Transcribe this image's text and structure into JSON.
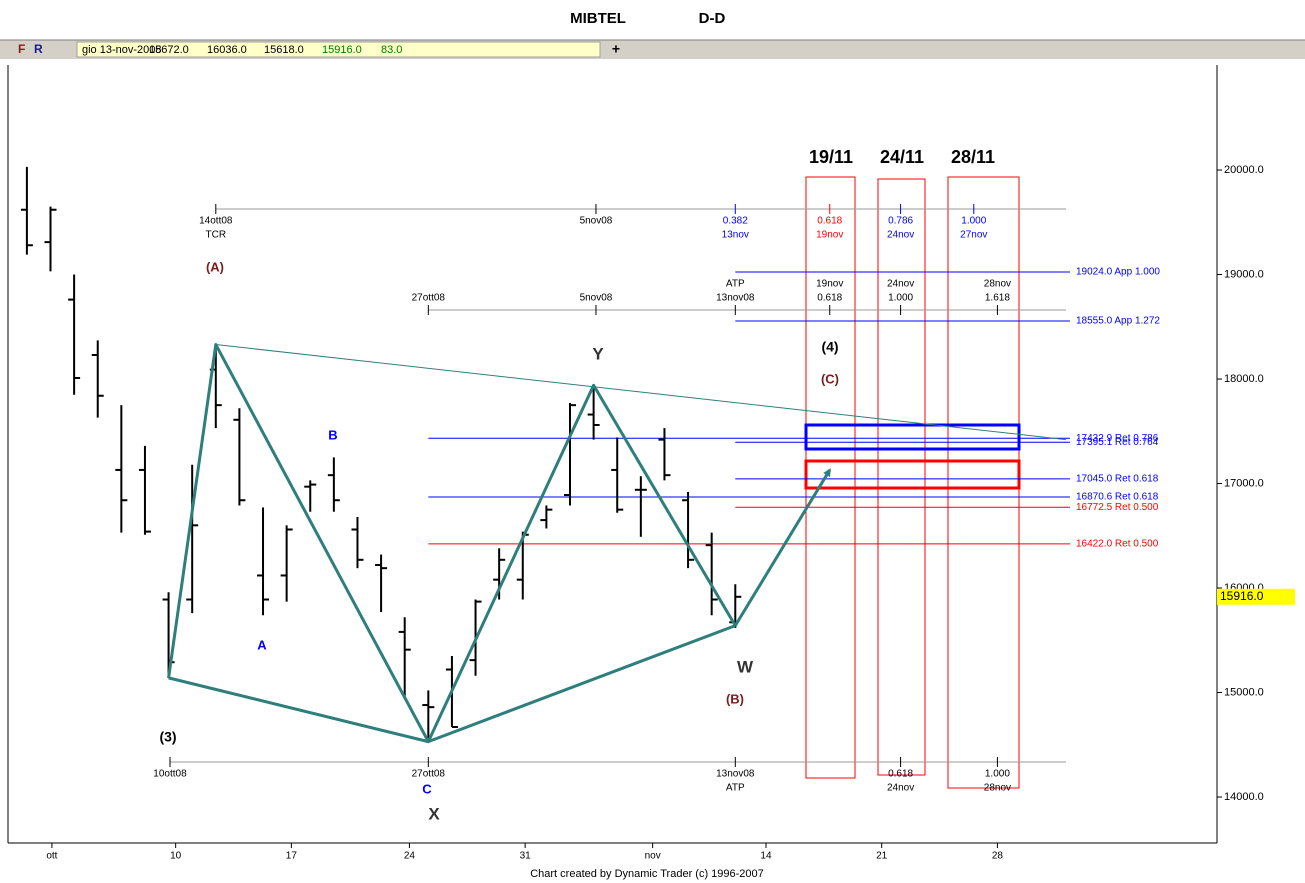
{
  "header": {
    "title": "MIBTEL",
    "period": "D-D"
  },
  "toolbar": {
    "buttons": [
      "F",
      "R"
    ],
    "date": "gio 13-nov-2008",
    "quote": [
      "15672.0",
      "16036.0",
      "15618.0",
      "15916.0",
      "83.0"
    ],
    "cursor": "+"
  },
  "footer": "Chart created by Dynamic Trader  (c) 1996-2007",
  "chart_data": {
    "type": "ohlc",
    "color": "#000000",
    "x": [
      0,
      1,
      2,
      3,
      4,
      5,
      6,
      7,
      8,
      9,
      10,
      11,
      12,
      13,
      14,
      15,
      16,
      17,
      18,
      19,
      20,
      21,
      22,
      23,
      24,
      25,
      26,
      27,
      28,
      29,
      30
    ],
    "open": [
      19620,
      19310,
      18760,
      18230,
      17130,
      17130,
      15890,
      15890,
      18090,
      17610,
      16120,
      16120,
      16970,
      17080,
      16560,
      16220,
      15580,
      14880,
      15220,
      15310,
      16080,
      16080,
      16650,
      16890,
      17660,
      17130,
      16940,
      17420,
      16840,
      16410,
      15672
    ],
    "high": [
      20030,
      19650,
      19000,
      18370,
      17750,
      17360,
      15960,
      17180,
      18330,
      17720,
      16770,
      16600,
      17030,
      17250,
      16680,
      16320,
      15720,
      15020,
      15350,
      15890,
      16380,
      16540,
      16790,
      17770,
      17940,
      17440,
      17070,
      17530,
      16920,
      16530,
      16036
    ],
    "low": [
      19190,
      19030,
      17850,
      17630,
      16530,
      16510,
      15140,
      15760,
      17530,
      16790,
      15740,
      15870,
      16730,
      16730,
      16190,
      15770,
      14960,
      14530,
      14670,
      15160,
      15890,
      15890,
      16570,
      16790,
      17420,
      16720,
      16490,
      17030,
      16190,
      15740,
      15618
    ],
    "close": [
      19280,
      19620,
      18010,
      17840,
      16840,
      16540,
      15290,
      16600,
      17750,
      16840,
      15890,
      16560,
      16990,
      16840,
      16270,
      16190,
      15410,
      14860,
      14670,
      15870,
      16270,
      16510,
      16750,
      17750,
      17560,
      16750,
      16940,
      17080,
      16270,
      15890,
      15916
    ],
    "last_price_label": "15916.0",
    "xlim": [
      -0.8,
      50.4
    ],
    "ylim": [
      13560,
      21005
    ],
    "yticks": [
      {
        "value": 14000,
        "label": "14000.0"
      },
      {
        "value": 15000,
        "label": "15000.0"
      },
      {
        "value": 16000,
        "label": "16000.0"
      },
      {
        "value": 17000,
        "label": "17000.0"
      },
      {
        "value": 18000,
        "label": "18000.0"
      },
      {
        "value": 19000,
        "label": "19000.0"
      },
      {
        "value": 20000,
        "label": "20000.0"
      }
    ],
    "xticks": [
      {
        "value": 1.06,
        "label": "ott"
      },
      {
        "value": 6.3,
        "label": "10"
      },
      {
        "value": 11.2,
        "label": "17"
      },
      {
        "value": 16.2,
        "label": "24"
      },
      {
        "value": 21.1,
        "label": "31"
      },
      {
        "value": 26.5,
        "label": "nov"
      },
      {
        "value": 31.3,
        "label": "14"
      },
      {
        "value": 36.2,
        "label": "21"
      },
      {
        "value": 41.1,
        "label": "28"
      }
    ],
    "levels": [
      {
        "value": 19024,
        "label": "19024.0 App 1.000",
        "color": "#0000ff",
        "start": 30
      },
      {
        "value": 18555,
        "label": "18555.0 App 1.272",
        "color": "#0000ff",
        "start": 30
      },
      {
        "value": 17432.9,
        "label": "17432.9 Ret 0.786",
        "color": "#0000ff",
        "start": 17
      },
      {
        "value": 17395.1,
        "label": "17395.1 Ret 0.764",
        "color": "#0000ff",
        "start": 30
      },
      {
        "value": 17045,
        "label": "17045.0 Ret 0.618",
        "color": "#0000ff",
        "start": 30
      },
      {
        "value": 16870.6,
        "label": "16870.6 Ret 0.618",
        "color": "#0000ff",
        "start": 17
      },
      {
        "value": 16772.5,
        "label": "16772.5 Ret 0.500",
        "color": "#ff0000",
        "start": 30
      },
      {
        "value": 16422,
        "label": "16422.0 Ret 0.500",
        "color": "#ff0000",
        "start": 17
      }
    ],
    "pattern": [
      {
        "x": [
          6,
          8,
          17,
          24,
          30
        ],
        "y": [
          15140,
          18330,
          14530,
          17940,
          15640
        ],
        "color": "#2e7f7c",
        "width": 3
      },
      {
        "x": [
          6,
          17,
          30
        ],
        "y": [
          15140,
          14530,
          15640
        ],
        "color": "#2e7f7c",
        "width": 3
      },
      {
        "x": [
          30,
          34
        ],
        "y": [
          15640,
          17130
        ],
        "color": "#2e7f7c",
        "width": 3,
        "arrow": true
      },
      {
        "x": [
          8,
          44
        ],
        "y": [
          18330,
          17420
        ],
        "color": "#2e7f7c",
        "width": 1
      }
    ],
    "rulers": [
      {
        "ticks": [
          {
            "x": 8,
            "labels": [
              "14ott08",
              "TCR"
            ],
            "color": "#000000"
          },
          {
            "x": 24.1,
            "labels": [
              "5nov08"
            ],
            "color": "#000000"
          },
          {
            "x": 30,
            "labels": [
              "0.382",
              "13nov"
            ],
            "color": "#0000ff"
          },
          {
            "x": 34,
            "labels": [
              "0.618",
              "19nov"
            ],
            "color": "#ff0000"
          },
          {
            "x": 37,
            "labels": [
              "0.786",
              "24nov"
            ],
            "color": "#0000ff"
          },
          {
            "x": 40.1,
            "labels": [
              "1.000",
              "27nov"
            ],
            "color": "#0000ff"
          }
        ]
      },
      {
        "ticks": [
          {
            "x": 17,
            "labels": [
              "27ott08"
            ],
            "color": "#000000"
          },
          {
            "x": 24.1,
            "labels": [
              "5nov08"
            ],
            "color": "#000000"
          },
          {
            "x": 30,
            "labels": [
              "ATP",
              "13nov08"
            ],
            "color": "#000000"
          },
          {
            "x": 34,
            "labels": [
              "19nov",
              "0.618"
            ],
            "color": "#000000"
          },
          {
            "x": 37,
            "labels": [
              "24nov",
              "1.000"
            ],
            "color": "#000000"
          },
          {
            "x": 41.1,
            "labels": [
              "28nov",
              "1.618"
            ],
            "color": "#000000"
          }
        ]
      },
      {
        "ticks": [
          {
            "x": 6.06,
            "labels": [
              "10ott08"
            ],
            "color": "#000000"
          },
          {
            "x": 17,
            "labels": [
              "27ott08"
            ],
            "color": "#000000"
          },
          {
            "x": 30,
            "labels": [
              "13nov08",
              "ATP"
            ],
            "color": "#000000"
          },
          {
            "x": 37,
            "labels": [
              "0.618",
              "24nov"
            ],
            "color": "#000000"
          },
          {
            "x": 41.1,
            "labels": [
              "1.000",
              "28nov"
            ],
            "color": "#000000"
          }
        ]
      }
    ],
    "time_windows": [
      "19/11",
      "24/11",
      "28/11"
    ],
    "wave_labels": [
      {
        "text": "(A)",
        "color": "#7b1c1c"
      },
      {
        "text": "B",
        "color": "#0000ff"
      },
      {
        "text": "A",
        "color": "#0000ff"
      },
      {
        "text": "(3)",
        "color": "#000000"
      },
      {
        "text": "C",
        "color": "#0000ff"
      },
      {
        "text": "X",
        "color": "#333333"
      },
      {
        "text": "Y",
        "color": "#333333"
      },
      {
        "text": "W",
        "color": "#333333"
      },
      {
        "text": "(B)",
        "color": "#7b1c1c"
      },
      {
        "text": "(4)",
        "color": "#000000"
      },
      {
        "text": "(C)",
        "color": "#7b1c1c"
      }
    ]
  }
}
